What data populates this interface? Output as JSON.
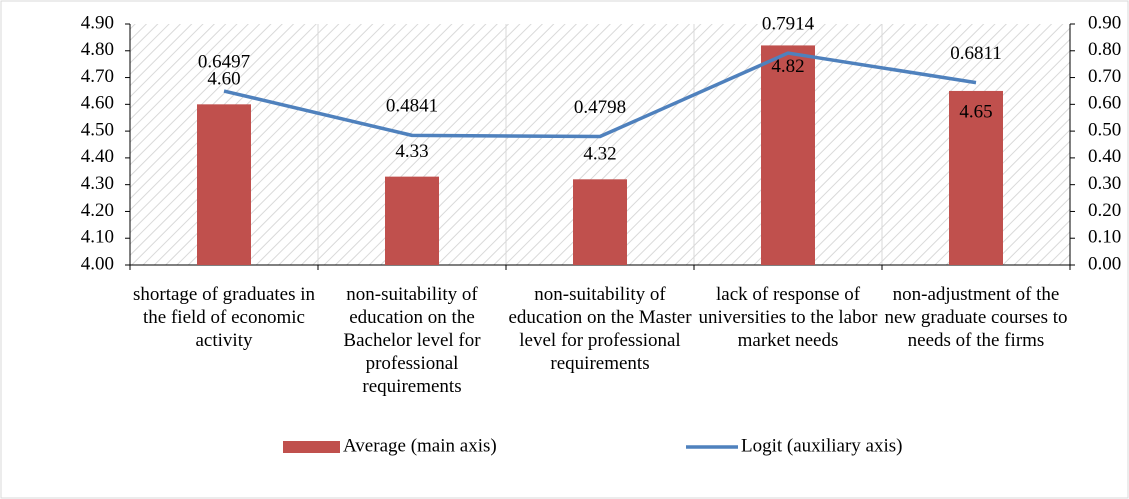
{
  "chart_data": {
    "type": "bar",
    "categories": [
      "shortage of graduates in the field of economic activity",
      "non-suitability of education on the Bachelor level for professional requirements",
      "non-suitability of education on the Master level for professional requirements",
      "lack of response of universities to the labor market needs",
      "non-adjustment of the new graduate courses to needs of the firms"
    ],
    "series": [
      {
        "name": "Average (main axis)",
        "type": "bar",
        "color": "#c0504d",
        "values": [
          4.6,
          4.33,
          4.32,
          4.82,
          4.65
        ],
        "value_labels": [
          "4.60",
          "4.33",
          "4.32",
          "4.82",
          "4.65"
        ]
      },
      {
        "name": "Logit (auxiliary axis)",
        "type": "line",
        "axis": "y2",
        "color": "#4f81bd",
        "values": [
          0.6497,
          0.4841,
          0.4798,
          0.7914,
          0.6811
        ]
      }
    ],
    "ylim": [
      4.0,
      4.9
    ],
    "yticks": [
      {
        "value": 4.0,
        "label": "4.00"
      },
      {
        "value": 4.1,
        "label": "4.10"
      },
      {
        "value": 4.2,
        "label": "4.20"
      },
      {
        "value": 4.3,
        "label": "4.30"
      },
      {
        "value": 4.4,
        "label": "4.40"
      },
      {
        "value": 4.5,
        "label": "4.50"
      },
      {
        "value": 4.6,
        "label": "4.60"
      },
      {
        "value": 4.7,
        "label": "4.70"
      },
      {
        "value": 4.8,
        "label": "4.80"
      },
      {
        "value": 4.9,
        "label": "4.90"
      }
    ],
    "y2lim": [
      0.0,
      0.9
    ],
    "y2ticks": [
      {
        "value": 0.0,
        "label": "0.00"
      },
      {
        "value": 0.1,
        "label": "0.10"
      },
      {
        "value": 0.2,
        "label": "0.20"
      },
      {
        "value": 0.3,
        "label": "0.30"
      },
      {
        "value": 0.4,
        "label": "0.40"
      },
      {
        "value": 0.5,
        "label": "0.50"
      },
      {
        "value": 0.6,
        "label": "0.60"
      },
      {
        "value": 0.7,
        "label": "0.70"
      },
      {
        "value": 0.8,
        "label": "0.80"
      },
      {
        "value": 0.9,
        "label": "0.90"
      }
    ],
    "grid": true,
    "legend": "bottom"
  }
}
